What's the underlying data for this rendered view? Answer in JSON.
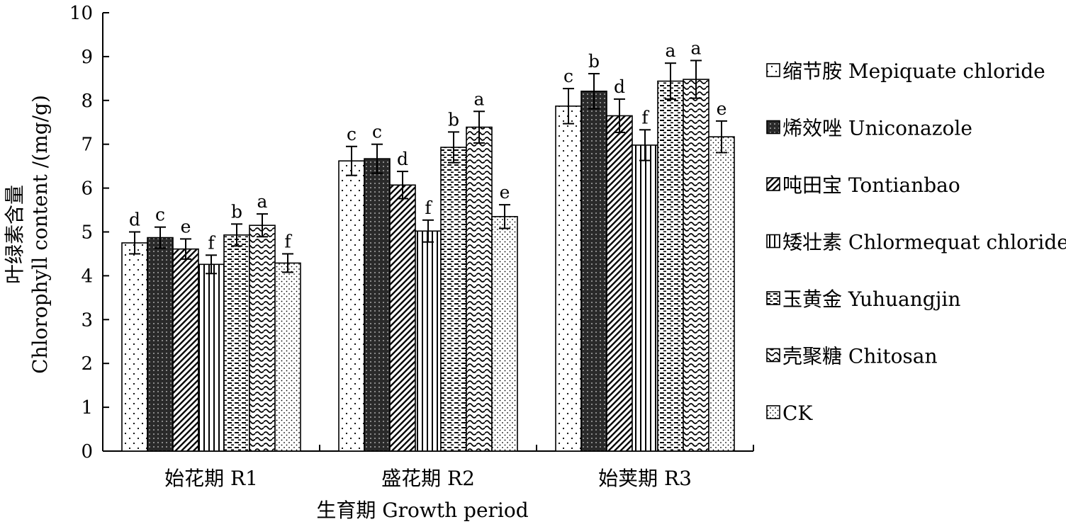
{
  "chart_data": {
    "type": "bar",
    "title": "",
    "xlabel": "生育期 Growth period",
    "ylabel_cn": "叶绿素含量",
    "ylabel_en": "Chlorophyll content /(mg/g)",
    "ylim": [
      0,
      10
    ],
    "yticks": [
      0,
      1,
      2,
      3,
      4,
      5,
      6,
      7,
      8,
      9,
      10
    ],
    "grid": false,
    "legend_position": "right",
    "categories": [
      "始花期  R1",
      "盛花期  R2",
      "始荚期  R3"
    ],
    "series": [
      {
        "name": "缩节胺  Mepiquate chloride",
        "pattern": "dots-sparse",
        "values": [
          4.75,
          6.62,
          7.87
        ],
        "errors": [
          0.25,
          0.33,
          0.4
        ],
        "labels": [
          "d",
          "c",
          "c"
        ]
      },
      {
        "name": "烯效唑  Uniconazole",
        "pattern": "dark-grid",
        "values": [
          4.87,
          6.67,
          8.21
        ],
        "errors": [
          0.24,
          0.33,
          0.4
        ],
        "labels": [
          "c",
          "c",
          "b"
        ]
      },
      {
        "name": "吨田宝  Tontianbao",
        "pattern": "diagonal",
        "values": [
          4.61,
          6.07,
          7.65
        ],
        "errors": [
          0.23,
          0.31,
          0.38
        ],
        "labels": [
          "e",
          "d",
          "d"
        ]
      },
      {
        "name": "矮壮素  Chlormequat chloride",
        "pattern": "vertical",
        "values": [
          4.26,
          5.02,
          6.98
        ],
        "errors": [
          0.21,
          0.25,
          0.35
        ],
        "labels": [
          "f",
          "f",
          "f"
        ]
      },
      {
        "name": "玉黄金  Yuhuangjin",
        "pattern": "horizontal-dashes",
        "values": [
          4.93,
          6.93,
          8.44
        ],
        "errors": [
          0.25,
          0.35,
          0.41
        ],
        "labels": [
          "b",
          "b",
          "a"
        ]
      },
      {
        "name": "壳聚糖  Chitosan",
        "pattern": "waves",
        "values": [
          5.15,
          7.39,
          8.48
        ],
        "errors": [
          0.26,
          0.36,
          0.43
        ],
        "labels": [
          "a",
          "a",
          "a"
        ]
      },
      {
        "name": "CK",
        "pattern": "dots-dense",
        "values": [
          4.29,
          5.35,
          7.17
        ],
        "errors": [
          0.21,
          0.27,
          0.36
        ],
        "labels": [
          "f",
          "e",
          "e"
        ]
      }
    ]
  }
}
